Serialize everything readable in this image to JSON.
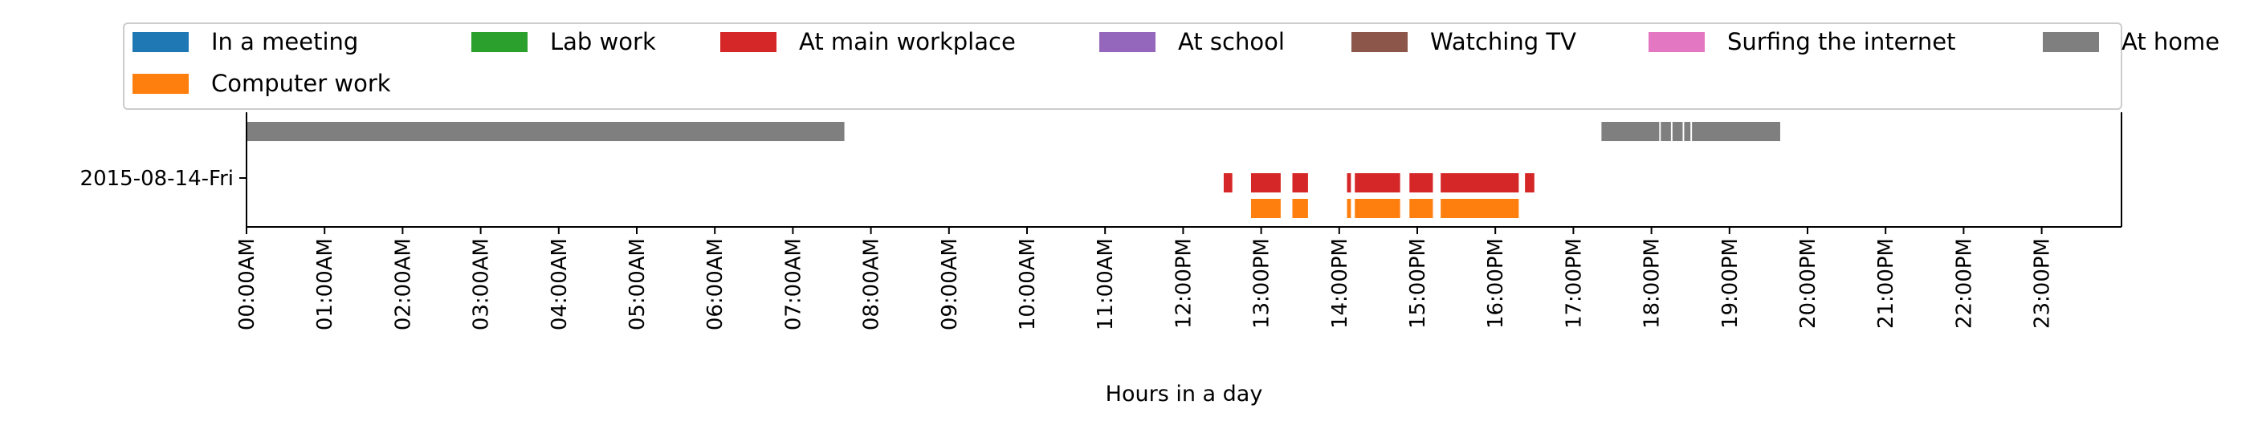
{
  "chart_data": {
    "type": "gantt",
    "title": "",
    "xlabel": "Hours in a day",
    "ylabel": "",
    "xlim": [
      0,
      24
    ],
    "row_label": "2015-08-14-Fri",
    "legend_position": "top",
    "grid": false,
    "x_ticks": [
      "00:00AM",
      "01:00AM",
      "02:00AM",
      "03:00AM",
      "04:00AM",
      "05:00AM",
      "06:00AM",
      "07:00AM",
      "08:00AM",
      "09:00AM",
      "10:00AM",
      "11:00AM",
      "12:00PM",
      "13:00PM",
      "14:00PM",
      "15:00PM",
      "16:00PM",
      "17:00PM",
      "18:00PM",
      "19:00PM",
      "20:00PM",
      "21:00PM",
      "22:00PM",
      "23:00PM"
    ],
    "legend": [
      {
        "name": "In a meeting",
        "color": "#1f77b4"
      },
      {
        "name": "Lab work",
        "color": "#2ca02c"
      },
      {
        "name": "At main workplace",
        "color": "#d62728"
      },
      {
        "name": "At school",
        "color": "#9467bd"
      },
      {
        "name": "Watching TV",
        "color": "#8c564b"
      },
      {
        "name": "Surfing the internet",
        "color": "#e377c2"
      },
      {
        "name": "At home",
        "color": "#7f7f7f"
      },
      {
        "name": "Computer work",
        "color": "#ff7f0e"
      }
    ],
    "series": [
      {
        "name": "At home",
        "lane": 0,
        "color": "#7f7f7f",
        "intervals": [
          [
            0.0,
            7.66
          ],
          [
            17.36,
            18.1
          ],
          [
            18.12,
            18.25
          ],
          [
            18.27,
            18.4
          ],
          [
            18.42,
            18.5
          ],
          [
            18.52,
            19.65
          ]
        ]
      },
      {
        "name": "At main workplace",
        "lane": 1,
        "color": "#d62728",
        "intervals": [
          [
            12.52,
            12.63
          ],
          [
            12.87,
            13.25
          ],
          [
            13.4,
            13.6
          ],
          [
            14.1,
            14.15
          ],
          [
            14.2,
            14.78
          ],
          [
            14.9,
            15.2
          ],
          [
            15.3,
            16.3
          ],
          [
            16.38,
            16.5
          ]
        ]
      },
      {
        "name": "Computer work",
        "lane": 2,
        "color": "#ff7f0e",
        "intervals": [
          [
            12.87,
            13.25
          ],
          [
            13.4,
            13.6
          ],
          [
            14.1,
            14.15
          ],
          [
            14.2,
            14.78
          ],
          [
            14.9,
            15.2
          ],
          [
            15.3,
            16.3
          ]
        ]
      }
    ]
  }
}
